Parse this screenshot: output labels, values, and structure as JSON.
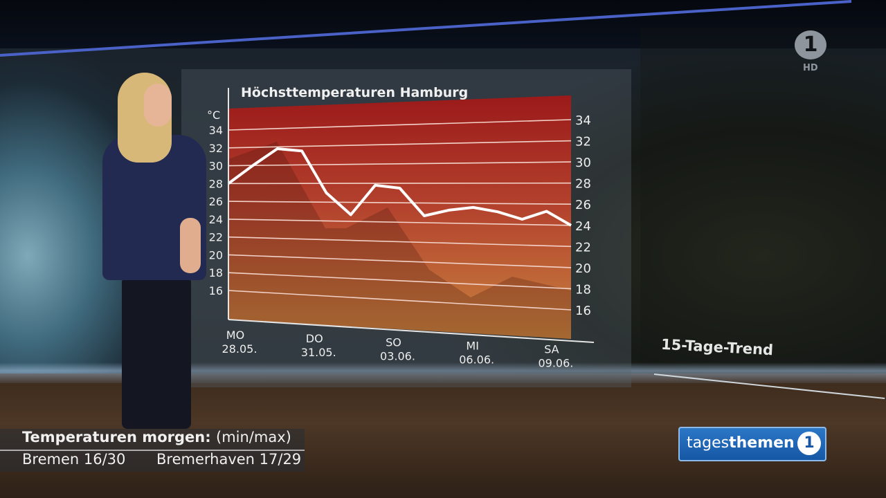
{
  "broadcast": {
    "channel_logo_text": "1",
    "hd_label": "HD",
    "show_name_light": "tages",
    "show_name_bold": "themen",
    "show_logo_text": "1"
  },
  "side_panel": {
    "trend_label": "15-Tage-Trend"
  },
  "lower_third": {
    "heading": "Temperaturen morgen:",
    "heading_unit": "(min/max)",
    "city1": "Bremen 16/30",
    "city2": "Bremerhaven 17/29"
  },
  "colors": {
    "chart_top": "#9b1a1a",
    "chart_mid": "#b8452f",
    "chart_bottom": "#c8843f",
    "line": "#ffffff",
    "show_blue": "#1456a3"
  },
  "chart_data": {
    "type": "line",
    "title": "Höchsttemperaturen Hamburg",
    "unit": "°C",
    "ylim": [
      16,
      34
    ],
    "y_ticks": [
      16,
      18,
      20,
      22,
      24,
      26,
      28,
      30,
      32,
      34
    ],
    "grid": true,
    "x_tick_labels": [
      {
        "day": "MO",
        "date": "28.05.",
        "index": 0
      },
      {
        "day": "DO",
        "date": "31.05.",
        "index": 3
      },
      {
        "day": "SO",
        "date": "03.06.",
        "index": 6
      },
      {
        "day": "MI",
        "date": "06.06.",
        "index": 9
      },
      {
        "day": "SA",
        "date": "09.06.",
        "index": 12
      }
    ],
    "x_range": [
      0,
      13
    ],
    "series": [
      {
        "values": [
          28,
          30,
          31.8,
          31.5,
          27,
          24.7,
          27.8,
          27.5,
          24.7,
          25.3,
          25.6,
          25.2,
          24.5,
          25.3,
          24
        ]
      }
    ]
  }
}
